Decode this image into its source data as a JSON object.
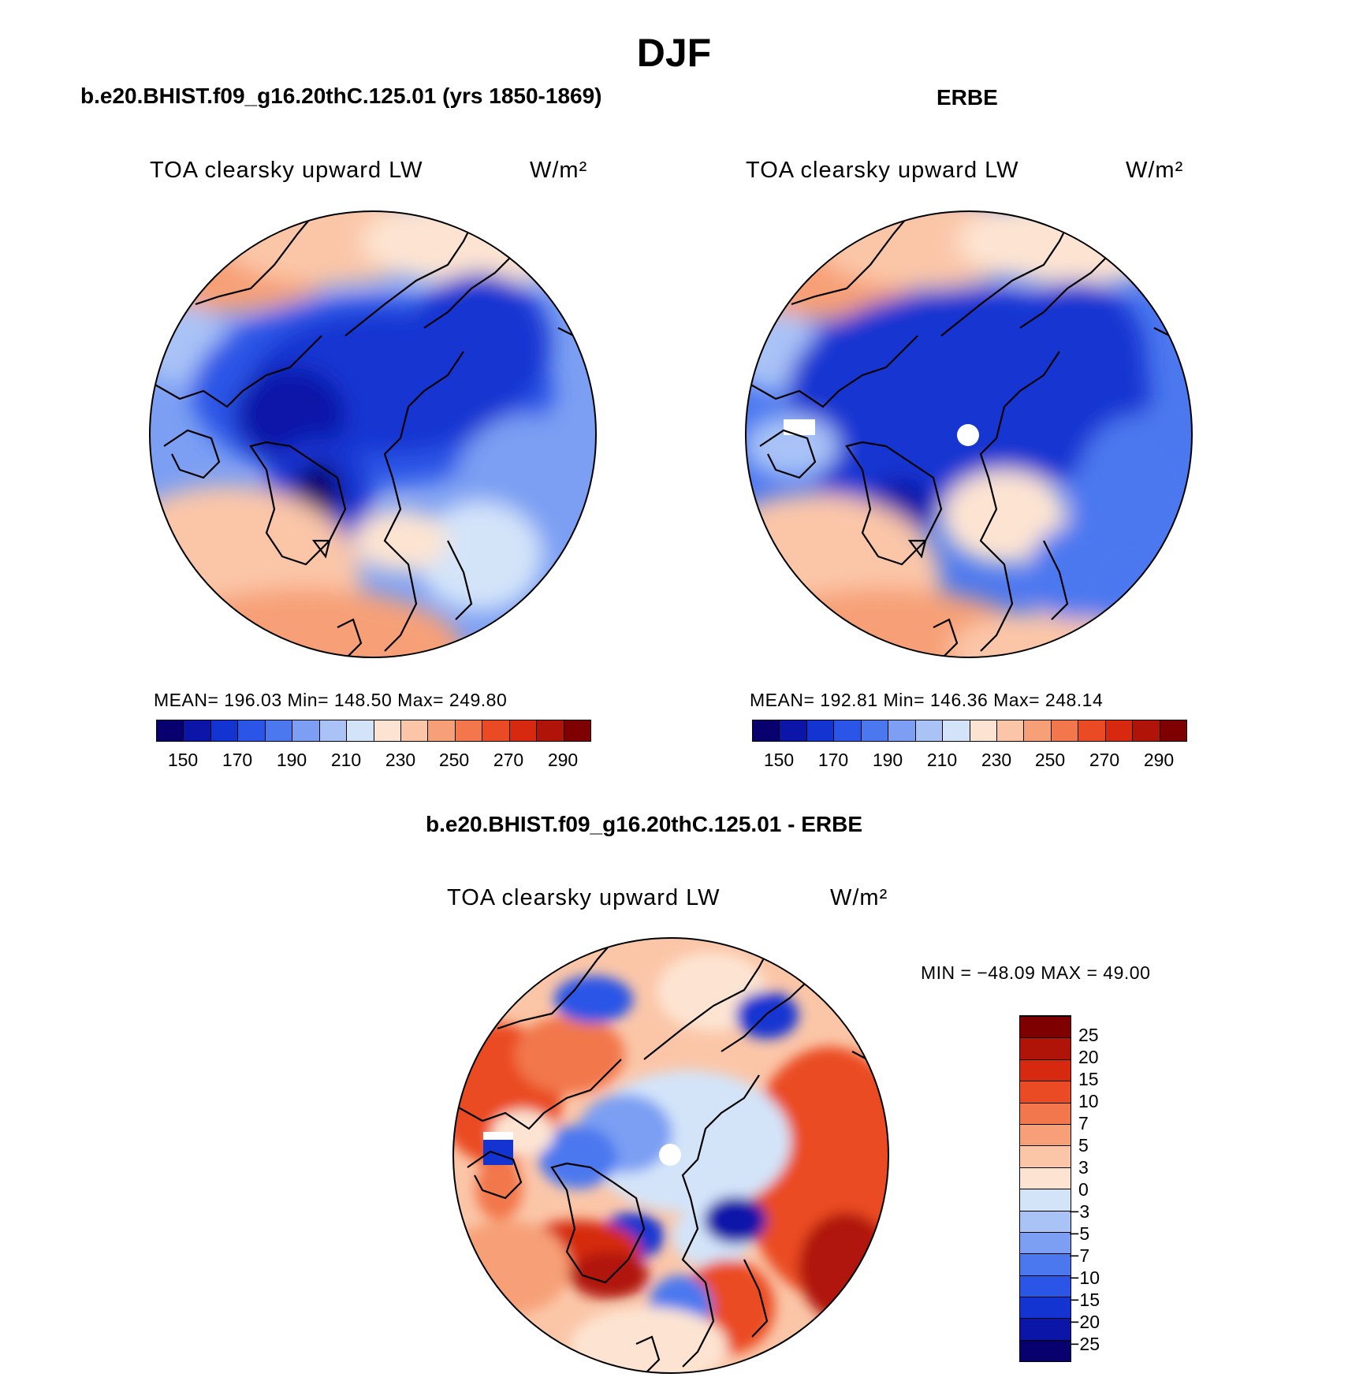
{
  "season_title": "DJF",
  "panels": [
    {
      "case_title": "b.e20.BHIST.f09_g16.20thC.125.01 (yrs 1850-1869)",
      "variable": "TOA clearsky upward LW",
      "units": "W/m²",
      "stats": "MEAN=  196.03   Min=  148.50   Max=  249.80"
    },
    {
      "case_title": "ERBE",
      "variable": "TOA clearsky upward LW",
      "units": "W/m²",
      "stats": "MEAN=  192.81   Min=  146.36   Max=  248.14"
    },
    {
      "case_title": "b.e20.BHIST.f09_g16.20thC.125.01 - ERBE",
      "variable": "TOA clearsky upward LW",
      "units": "W/m²",
      "stats": "MIN =  −48.09  MAX =   49.00"
    }
  ],
  "abs_colorbar": {
    "ticks": [
      "150",
      "170",
      "190",
      "210",
      "230",
      "250",
      "270",
      "290"
    ],
    "colors": [
      "#08006e",
      "#0b16a8",
      "#1434d1",
      "#2a55e6",
      "#4c78ef",
      "#7c9ff3",
      "#a9c3f7",
      "#d3e4f9",
      "#fde4d2",
      "#fbc6a8",
      "#f7a077",
      "#f2774c",
      "#ea4b24",
      "#d6290f",
      "#b01408",
      "#7f0000"
    ]
  },
  "diff_colorbar": {
    "ticks": [
      "25",
      "20",
      "15",
      "10",
      "7",
      "5",
      "3",
      "0",
      "−3",
      "−5",
      "−7",
      "−10",
      "−15",
      "−20",
      "−25"
    ],
    "colors": [
      "#08006e",
      "#0b16a8",
      "#1434d1",
      "#2a55e6",
      "#4c78ef",
      "#7c9ff3",
      "#a9c3f7",
      "#d3e4f9",
      "#fde4d2",
      "#fbc6a8",
      "#f7a077",
      "#f2774c",
      "#ea4b24",
      "#d6290f",
      "#b01408",
      "#7f0000"
    ]
  }
}
